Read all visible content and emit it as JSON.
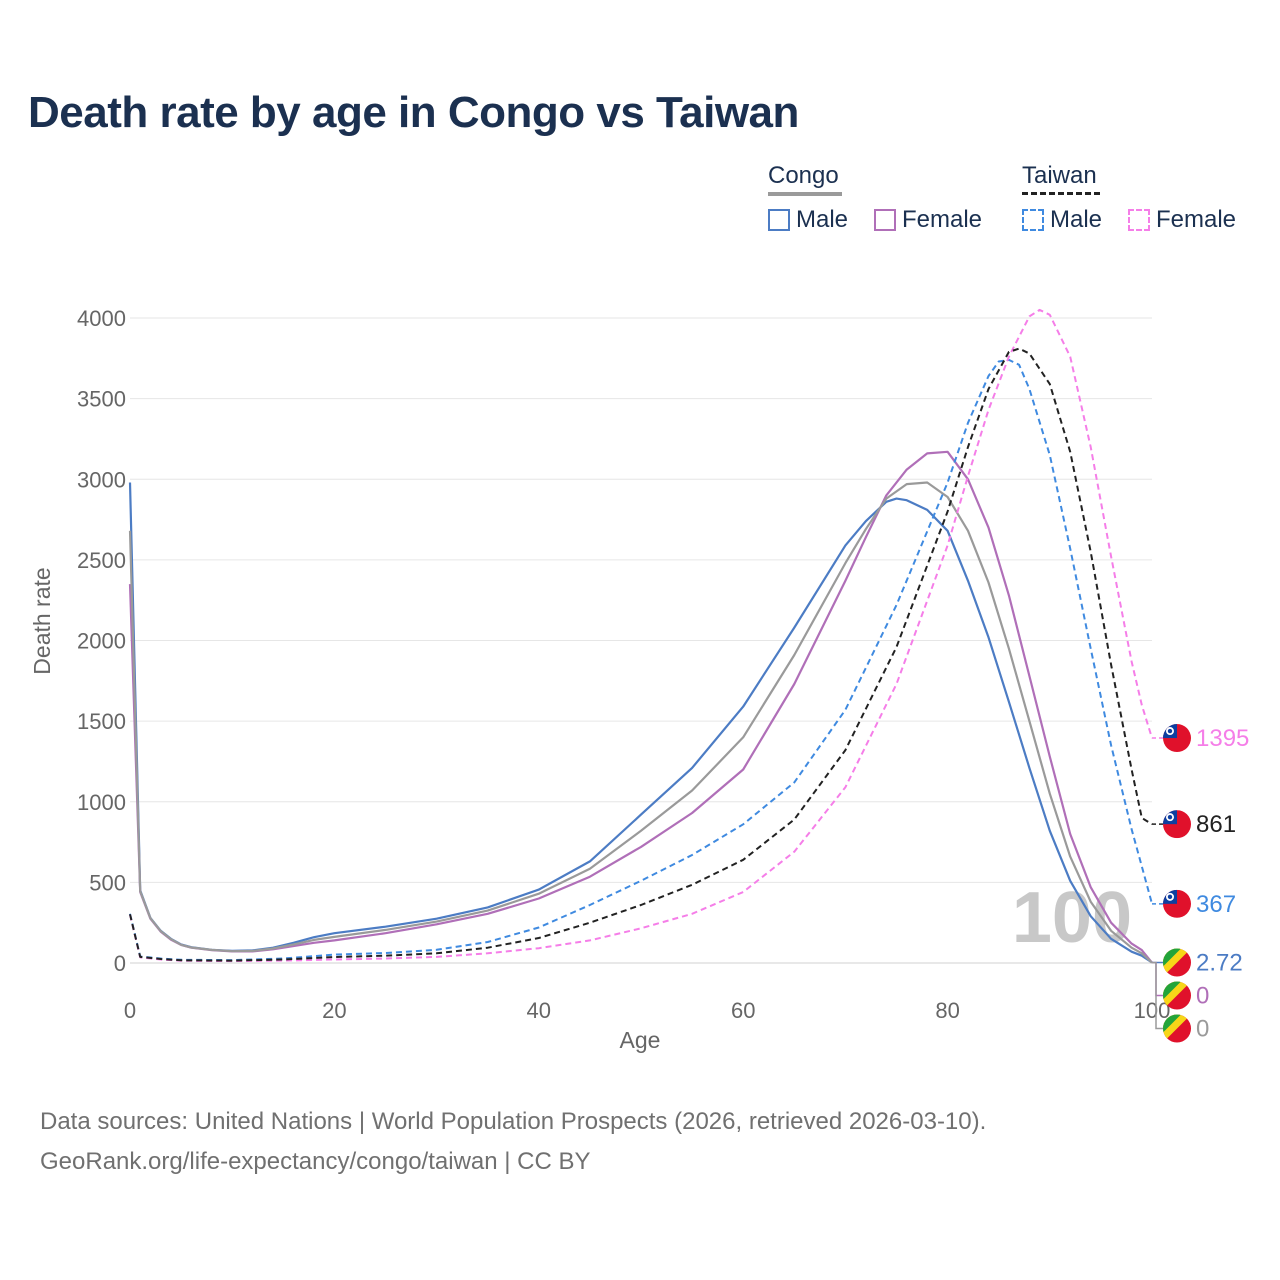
{
  "title": "Death rate by age in Congo vs Taiwan",
  "legend": {
    "groups": [
      {
        "name": "Congo",
        "underline_color": "#9a9a9a",
        "underline_style": "solid",
        "items": [
          {
            "label": "Male",
            "color": "#4c7cc4",
            "style": "solid"
          },
          {
            "label": "Female",
            "color": "#b06fb8",
            "style": "solid"
          }
        ]
      },
      {
        "name": "Taiwan",
        "underline_color": "#222222",
        "underline_style": "dashed",
        "items": [
          {
            "label": "Male",
            "color": "#3f8ae0",
            "style": "dashed"
          },
          {
            "label": "Female",
            "color": "#f57ee8",
            "style": "dashed"
          }
        ]
      }
    ]
  },
  "footer": {
    "line1": "Data sources: United Nations | World Population Prospects (2026, retrieved 2026-03-10).",
    "line2": "GeoRank.org/life-expectancy/congo/taiwan | CC BY"
  },
  "colors": {
    "title": "#1b3050",
    "grid": "#e6e6e6",
    "watermark": "#c8c8c8"
  },
  "chart_data": {
    "type": "line",
    "title": "Death rate by age in Congo vs Taiwan",
    "xlabel": "Age",
    "ylabel": "Death rate",
    "xlim": [
      0,
      100
    ],
    "ylim": [
      0,
      4000
    ],
    "xticks": [
      0,
      20,
      40,
      60,
      80,
      100
    ],
    "yticks": [
      0,
      500,
      1000,
      1500,
      2000,
      2500,
      3000,
      3500,
      4000
    ],
    "grid": true,
    "current_age_label": "100",
    "series": [
      {
        "name": "Congo Male",
        "country": "Congo",
        "sex": "Male",
        "color": "#4c7cc4",
        "dash": false,
        "end_label": "2.72",
        "flag": "congo",
        "points": [
          [
            0,
            2980
          ],
          [
            1,
            450
          ],
          [
            2,
            280
          ],
          [
            3,
            200
          ],
          [
            4,
            150
          ],
          [
            5,
            115
          ],
          [
            6,
            98
          ],
          [
            8,
            82
          ],
          [
            10,
            75
          ],
          [
            12,
            78
          ],
          [
            14,
            95
          ],
          [
            16,
            125
          ],
          [
            18,
            160
          ],
          [
            20,
            185
          ],
          [
            25,
            225
          ],
          [
            30,
            275
          ],
          [
            35,
            345
          ],
          [
            40,
            455
          ],
          [
            45,
            630
          ],
          [
            50,
            920
          ],
          [
            55,
            1210
          ],
          [
            60,
            1590
          ],
          [
            65,
            2080
          ],
          [
            70,
            2590
          ],
          [
            72,
            2740
          ],
          [
            74,
            2860
          ],
          [
            75,
            2880
          ],
          [
            76,
            2870
          ],
          [
            78,
            2810
          ],
          [
            80,
            2680
          ],
          [
            82,
            2370
          ],
          [
            84,
            2020
          ],
          [
            86,
            1620
          ],
          [
            88,
            1210
          ],
          [
            90,
            820
          ],
          [
            92,
            510
          ],
          [
            94,
            290
          ],
          [
            96,
            150
          ],
          [
            98,
            70
          ],
          [
            99,
            45
          ],
          [
            100,
            3
          ]
        ]
      },
      {
        "name": "Congo Female",
        "country": "Congo",
        "sex": "Female",
        "color": "#b06fb8",
        "dash": false,
        "end_label": "0",
        "flag": "congo",
        "points": [
          [
            0,
            2350
          ],
          [
            1,
            440
          ],
          [
            2,
            275
          ],
          [
            3,
            195
          ],
          [
            4,
            145
          ],
          [
            5,
            112
          ],
          [
            6,
            95
          ],
          [
            8,
            80
          ],
          [
            10,
            72
          ],
          [
            12,
            72
          ],
          [
            14,
            85
          ],
          [
            16,
            105
          ],
          [
            18,
            125
          ],
          [
            20,
            140
          ],
          [
            25,
            185
          ],
          [
            30,
            240
          ],
          [
            35,
            305
          ],
          [
            40,
            400
          ],
          [
            45,
            535
          ],
          [
            50,
            720
          ],
          [
            55,
            930
          ],
          [
            60,
            1200
          ],
          [
            65,
            1730
          ],
          [
            70,
            2370
          ],
          [
            72,
            2640
          ],
          [
            74,
            2900
          ],
          [
            76,
            3060
          ],
          [
            78,
            3160
          ],
          [
            80,
            3170
          ],
          [
            82,
            3000
          ],
          [
            84,
            2700
          ],
          [
            86,
            2280
          ],
          [
            88,
            1780
          ],
          [
            90,
            1280
          ],
          [
            92,
            800
          ],
          [
            94,
            470
          ],
          [
            96,
            250
          ],
          [
            98,
            120
          ],
          [
            99,
            80
          ],
          [
            100,
            2
          ]
        ]
      },
      {
        "name": "Congo Total",
        "country": "Congo",
        "sex": "Total",
        "color": "#9a9a9a",
        "dash": false,
        "end_label": "0",
        "flag": "congo",
        "points": [
          [
            0,
            2680
          ],
          [
            1,
            445
          ],
          [
            2,
            278
          ],
          [
            3,
            198
          ],
          [
            4,
            148
          ],
          [
            5,
            113
          ],
          [
            6,
            96
          ],
          [
            8,
            81
          ],
          [
            10,
            73
          ],
          [
            12,
            75
          ],
          [
            14,
            90
          ],
          [
            16,
            115
          ],
          [
            18,
            143
          ],
          [
            20,
            162
          ],
          [
            25,
            205
          ],
          [
            30,
            257
          ],
          [
            35,
            325
          ],
          [
            40,
            430
          ],
          [
            45,
            585
          ],
          [
            50,
            820
          ],
          [
            55,
            1070
          ],
          [
            60,
            1400
          ],
          [
            65,
            1910
          ],
          [
            70,
            2480
          ],
          [
            72,
            2690
          ],
          [
            74,
            2880
          ],
          [
            76,
            2970
          ],
          [
            78,
            2980
          ],
          [
            80,
            2890
          ],
          [
            82,
            2680
          ],
          [
            84,
            2360
          ],
          [
            86,
            1950
          ],
          [
            88,
            1500
          ],
          [
            90,
            1050
          ],
          [
            92,
            660
          ],
          [
            94,
            380
          ],
          [
            96,
            200
          ],
          [
            98,
            95
          ],
          [
            99,
            60
          ],
          [
            100,
            2
          ]
        ]
      },
      {
        "name": "Taiwan Male",
        "country": "Taiwan",
        "sex": "Male",
        "color": "#3f8ae0",
        "dash": true,
        "end_label": "367",
        "flag": "taiwan",
        "points": [
          [
            0,
            305
          ],
          [
            1,
            40
          ],
          [
            3,
            28
          ],
          [
            5,
            20
          ],
          [
            10,
            18
          ],
          [
            15,
            28
          ],
          [
            20,
            52
          ],
          [
            25,
            62
          ],
          [
            30,
            82
          ],
          [
            35,
            130
          ],
          [
            40,
            220
          ],
          [
            45,
            360
          ],
          [
            50,
            510
          ],
          [
            55,
            670
          ],
          [
            60,
            860
          ],
          [
            65,
            1120
          ],
          [
            70,
            1570
          ],
          [
            75,
            2220
          ],
          [
            80,
            2980
          ],
          [
            82,
            3350
          ],
          [
            84,
            3640
          ],
          [
            85,
            3730
          ],
          [
            86,
            3740
          ],
          [
            87,
            3710
          ],
          [
            88,
            3560
          ],
          [
            90,
            3150
          ],
          [
            92,
            2570
          ],
          [
            94,
            1950
          ],
          [
            96,
            1350
          ],
          [
            98,
            830
          ],
          [
            99,
            600
          ],
          [
            100,
            367
          ]
        ]
      },
      {
        "name": "Taiwan Female",
        "country": "Taiwan",
        "sex": "Female",
        "color": "#f57ee8",
        "dash": true,
        "end_label": "1395",
        "flag": "taiwan",
        "points": [
          [
            0,
            300
          ],
          [
            1,
            35
          ],
          [
            3,
            22
          ],
          [
            5,
            14
          ],
          [
            10,
            12
          ],
          [
            15,
            15
          ],
          [
            20,
            22
          ],
          [
            25,
            28
          ],
          [
            30,
            38
          ],
          [
            35,
            60
          ],
          [
            40,
            92
          ],
          [
            45,
            140
          ],
          [
            50,
            215
          ],
          [
            55,
            305
          ],
          [
            60,
            440
          ],
          [
            65,
            690
          ],
          [
            70,
            1090
          ],
          [
            75,
            1730
          ],
          [
            80,
            2590
          ],
          [
            82,
            3020
          ],
          [
            84,
            3430
          ],
          [
            86,
            3760
          ],
          [
            88,
            4010
          ],
          [
            89,
            4050
          ],
          [
            90,
            4020
          ],
          [
            92,
            3760
          ],
          [
            94,
            3200
          ],
          [
            96,
            2520
          ],
          [
            98,
            1870
          ],
          [
            99,
            1600
          ],
          [
            100,
            1395
          ]
        ]
      },
      {
        "name": "Taiwan Total",
        "country": "Taiwan",
        "sex": "Total",
        "color": "#222222",
        "dash": true,
        "end_label": "861",
        "flag": "taiwan",
        "points": [
          [
            0,
            302
          ],
          [
            1,
            38
          ],
          [
            3,
            25
          ],
          [
            5,
            17
          ],
          [
            10,
            15
          ],
          [
            15,
            22
          ],
          [
            20,
            37
          ],
          [
            25,
            45
          ],
          [
            30,
            60
          ],
          [
            35,
            95
          ],
          [
            40,
            155
          ],
          [
            45,
            250
          ],
          [
            50,
            360
          ],
          [
            55,
            485
          ],
          [
            60,
            640
          ],
          [
            65,
            890
          ],
          [
            70,
            1320
          ],
          [
            75,
            1960
          ],
          [
            80,
            2800
          ],
          [
            82,
            3200
          ],
          [
            84,
            3560
          ],
          [
            86,
            3790
          ],
          [
            87,
            3810
          ],
          [
            88,
            3780
          ],
          [
            90,
            3590
          ],
          [
            92,
            3170
          ],
          [
            94,
            2550
          ],
          [
            96,
            1850
          ],
          [
            98,
            1200
          ],
          [
            99,
            900
          ],
          [
            100,
            861
          ]
        ]
      }
    ]
  }
}
